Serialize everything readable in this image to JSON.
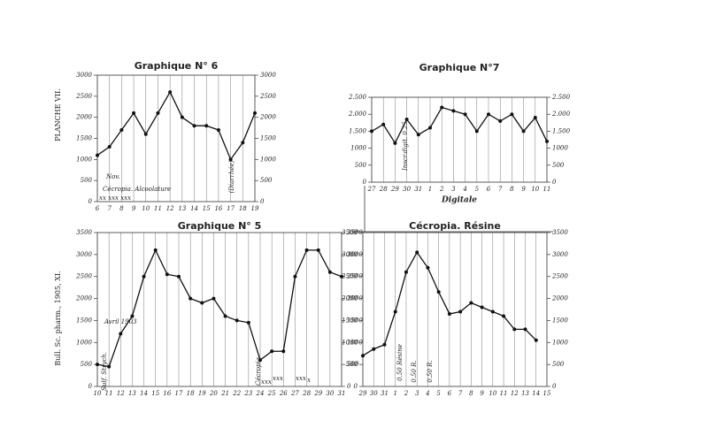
{
  "side_texts": [
    "PLANCHE VII.",
    "Bull. Sc. pharm., 1905, XI."
  ],
  "chart_data": [
    {
      "type": "line",
      "title": "Graphique N° 6",
      "categories": [
        "6",
        "7",
        "8",
        "9",
        "10",
        "11",
        "12",
        "13",
        "14",
        "15",
        "16",
        "17",
        "18",
        "19"
      ],
      "values": [
        1100,
        1300,
        1700,
        2100,
        1600,
        2100,
        2600,
        2000,
        1800,
        1800,
        1700,
        1000,
        1400,
        2100
      ],
      "ylim": [
        0,
        3000
      ],
      "yticks": [
        0,
        500,
        1000,
        1500,
        2000,
        2500,
        3000
      ],
      "color": "#111",
      "annotations": [
        "Nov.",
        "Cécropia. Alcoolature",
        "xx xxx xxx",
        "(Diarrhée)"
      ]
    },
    {
      "type": "line",
      "title": "Graphique N°7",
      "categories": [
        "27",
        "28",
        "29",
        "30",
        "31",
        "1",
        "2",
        "3",
        "4",
        "5",
        "6",
        "7",
        "8",
        "9",
        "10",
        "11"
      ],
      "values": [
        1500,
        1700,
        1150,
        1850,
        1400,
        1600,
        2200,
        2100,
        2000,
        1500,
        2000,
        1800,
        2000,
        1500,
        1900,
        1200
      ],
      "ylim": [
        0,
        2500
      ],
      "yticks": [
        0,
        500,
        {
          "value": 1000,
          "label": "1000"
        },
        {
          "value": 1500,
          "label": "1.500"
        },
        {
          "value": 2000,
          "label": "2.000"
        },
        {
          "value": 2500,
          "label": "2.500"
        }
      ],
      "color": "#111",
      "xlabel": "Digitale",
      "annotations": [
        "Inscr.digit. 0.25"
      ]
    },
    {
      "type": "line",
      "title": "Graphique N° 5",
      "categories": [
        "10",
        "11",
        "12",
        "13",
        "14",
        "15",
        "16",
        "17",
        "18",
        "19",
        "20",
        "21",
        "22",
        "23",
        "24",
        "25",
        "26",
        "27",
        "28",
        "29",
        "30",
        "31"
      ],
      "values": [
        500,
        450,
        1200,
        1600,
        2500,
        3100,
        2550,
        2500,
        2000,
        1900,
        2000,
        1600,
        1500,
        1450,
        600,
        800,
        800,
        2500,
        3100,
        3100,
        2600,
        2500
      ],
      "ylim": [
        0,
        3500
      ],
      "yticks": [
        0,
        500,
        1000,
        1500,
        2000,
        2500,
        3000,
        3500
      ],
      "color": "#111",
      "annotations": [
        "Avril 1903",
        "Sulf. Strych.",
        "Cécropia",
        "xxx",
        "xxx",
        "xxx",
        "x"
      ]
    },
    {
      "type": "line",
      "title": "Cécropia. Résine",
      "categories": [
        "29",
        "30",
        "31",
        "1",
        "2",
        "3",
        "4",
        "5",
        "6",
        "7",
        "8",
        "9",
        "10",
        "11",
        "12",
        "13",
        "14",
        "15"
      ],
      "values": [
        700,
        850,
        950,
        1700,
        2600,
        3050,
        2700,
        2150,
        1650,
        1700,
        1900,
        1800,
        1700,
        1600,
        1300,
        1300,
        1050,
        null
      ],
      "ylim": [
        0,
        3500
      ],
      "yticks": [
        0,
        500,
        1000,
        1500,
        2000,
        2500,
        3000,
        3500
      ],
      "color": "#111",
      "annotations": [
        "0.50 Résine",
        "0.50 R.",
        "0.50 R."
      ]
    }
  ]
}
